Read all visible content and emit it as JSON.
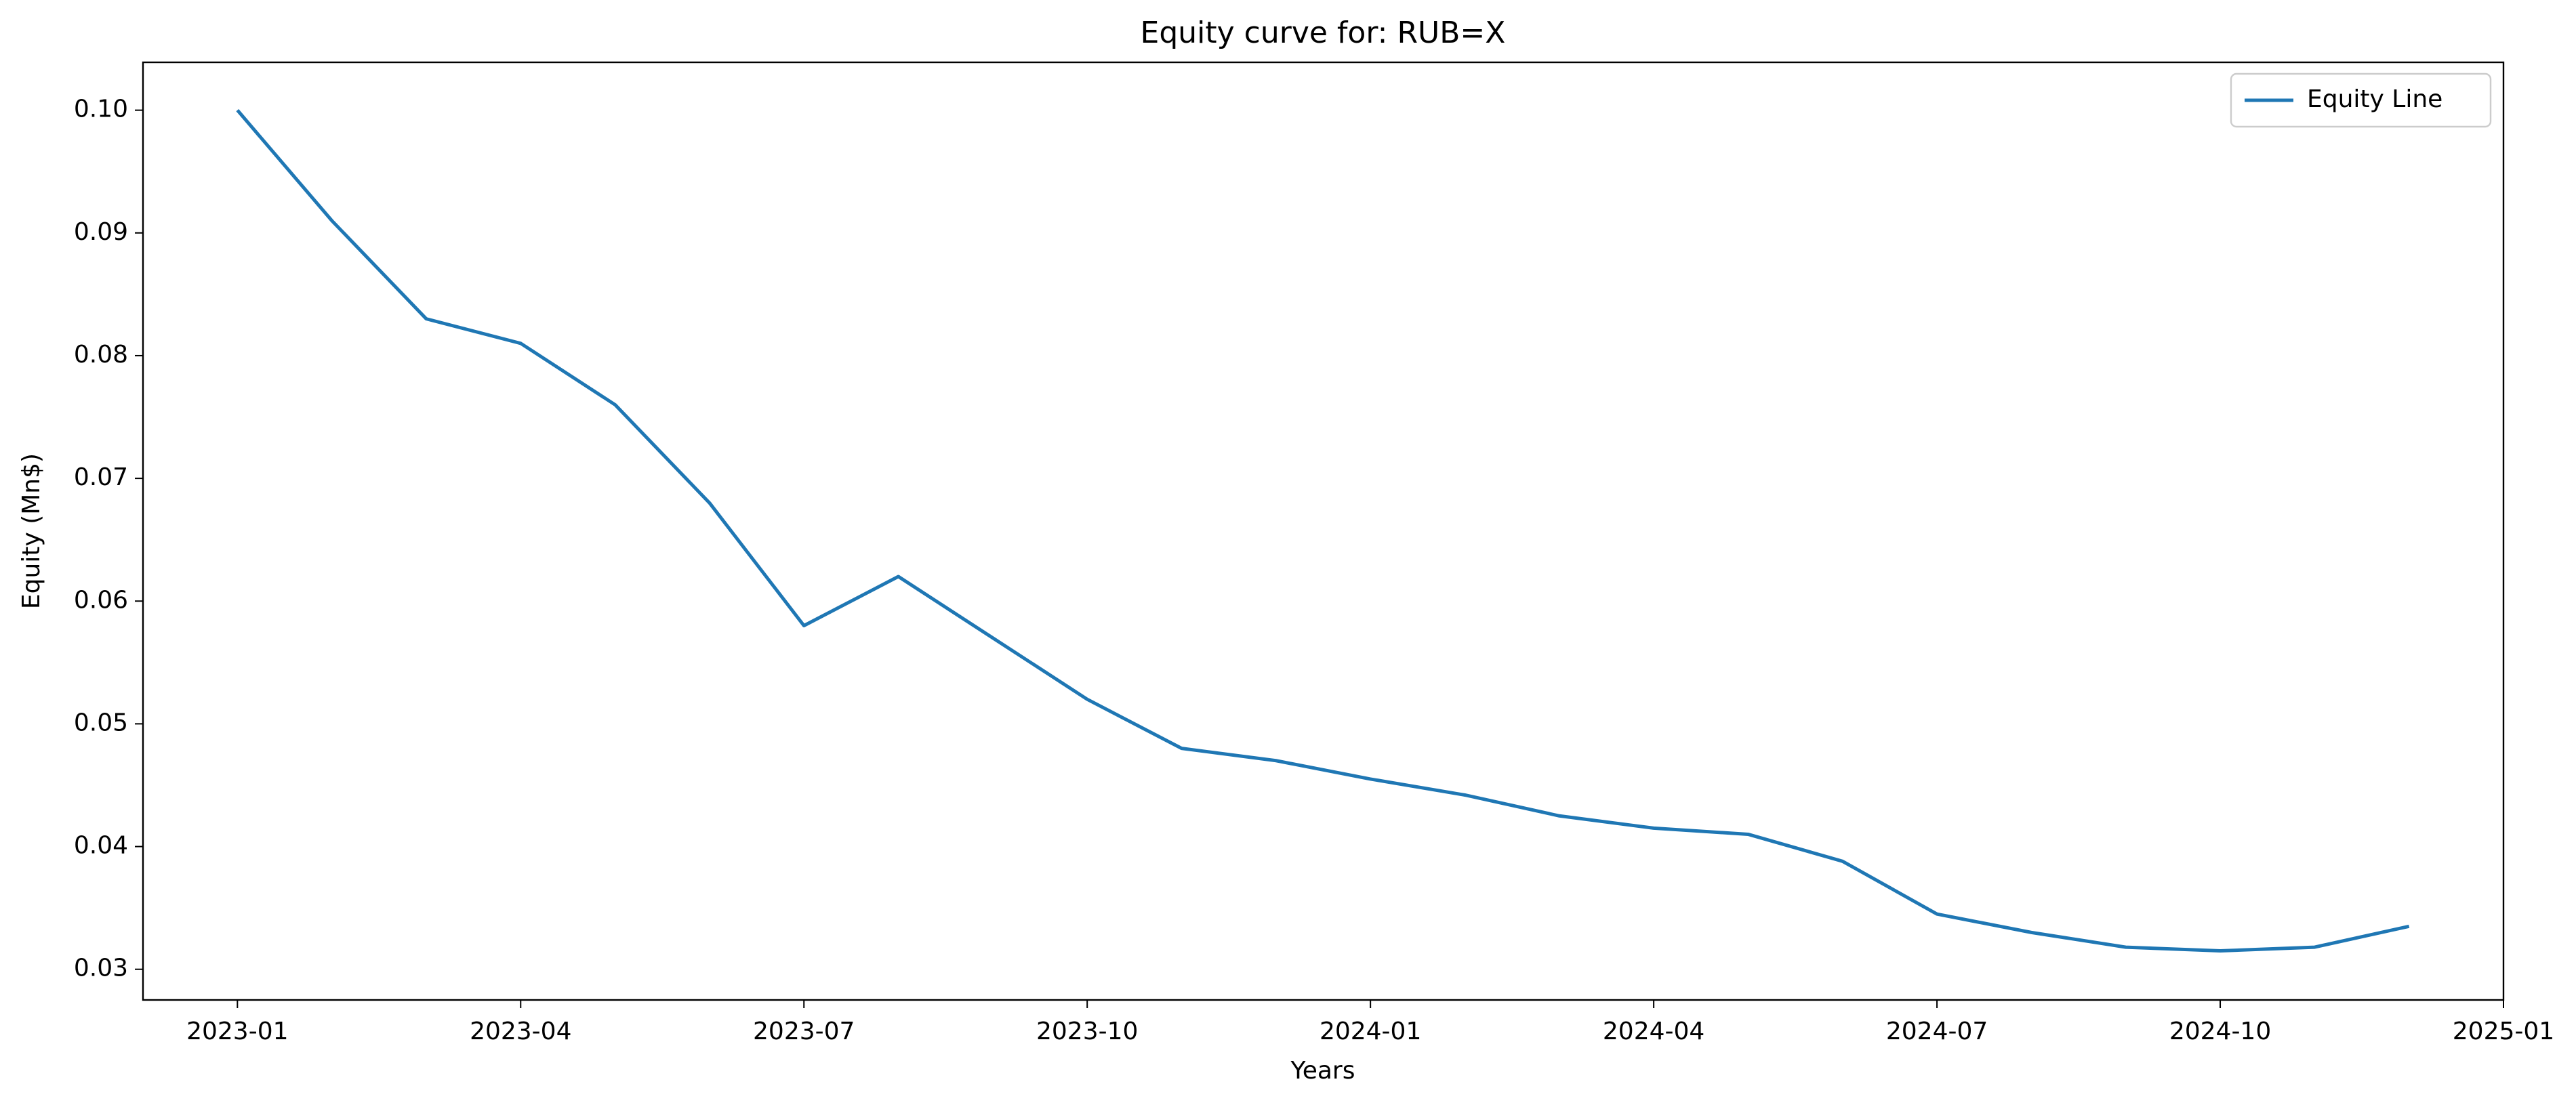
{
  "chart_data": {
    "type": "line",
    "title": "Equity curve for: RUB=X",
    "xlabel": "Years",
    "ylabel": "Equity (Mn$)",
    "x": [
      "2023-01",
      "2023-02",
      "2023-03",
      "2023-04",
      "2023-05",
      "2023-06",
      "2023-07",
      "2023-08",
      "2023-09",
      "2023-10",
      "2023-11",
      "2023-12",
      "2024-01",
      "2024-02",
      "2024-03",
      "2024-04",
      "2024-05",
      "2024-06",
      "2024-07",
      "2024-08",
      "2024-09",
      "2024-10",
      "2024-11",
      "2024-12"
    ],
    "series": [
      {
        "name": "Equity Line",
        "color": "#1f77b4",
        "values": [
          0.1,
          0.091,
          0.083,
          0.081,
          0.076,
          0.068,
          0.058,
          0.062,
          0.057,
          0.052,
          0.048,
          0.047,
          0.0455,
          0.0442,
          0.0425,
          0.0415,
          0.041,
          0.0388,
          0.0345,
          0.033,
          0.0318,
          0.0315,
          0.0318,
          0.0335
        ]
      }
    ],
    "xlim": [
      "2022-12",
      "2025-01"
    ],
    "xticks": [
      "2023-01",
      "2023-04",
      "2023-07",
      "2023-10",
      "2024-01",
      "2024-04",
      "2024-07",
      "2024-10",
      "2025-01"
    ],
    "ylim": [
      0.0275,
      0.1039
    ],
    "yticks": [
      0.03,
      0.04,
      0.05,
      0.06,
      0.07,
      0.08,
      0.09,
      {
        "value": 0.1,
        "label": "0.10"
      }
    ],
    "legend": "upper right",
    "grid": false
  }
}
